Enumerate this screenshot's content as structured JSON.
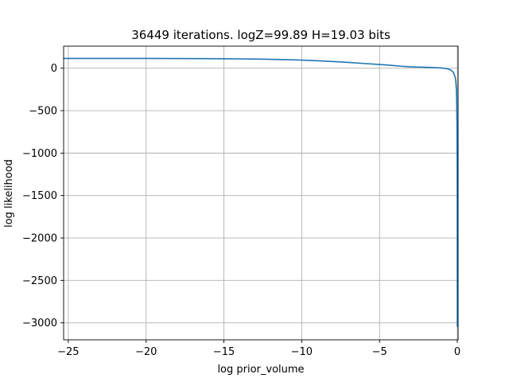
{
  "chart_data": {
    "type": "line",
    "title": "36449 iterations. logZ=99.89 H=19.03 bits",
    "xlabel": "log prior_volume",
    "ylabel": "log likelihood",
    "xlim": [
      -25.3,
      0.05
    ],
    "ylim": [
      -3200,
      260
    ],
    "grid": true,
    "x_ticks": [
      -25,
      -20,
      -15,
      -10,
      -5,
      0
    ],
    "x_tick_labels": [
      "−25",
      "−20",
      "−15",
      "−10",
      "−5",
      "0"
    ],
    "y_ticks": [
      0,
      -500,
      -1000,
      -1500,
      -2000,
      -2500,
      -3000
    ],
    "y_tick_labels": [
      "0",
      "−500",
      "−1000",
      "−1500",
      "−2000",
      "−2500",
      "−3000"
    ],
    "series": [
      {
        "color": "#1f77b4",
        "x": [
          -25.3,
          -22,
          -20,
          -18,
          -16,
          -15,
          -14,
          -13,
          -12,
          -11,
          -10,
          -9,
          -8,
          -7,
          -6,
          -5,
          -4.5,
          -4,
          -3.5,
          -3,
          -2.5,
          -2,
          -1.5,
          -1,
          -0.7,
          -0.5,
          -0.35,
          -0.25,
          -0.15,
          -0.1,
          -0.06,
          -0.04,
          -0.02,
          -0.01,
          -0.005,
          -0.002,
          0
        ],
        "y": [
          115,
          115,
          115,
          114,
          113,
          112,
          110,
          108,
          105,
          101,
          96,
          88,
          79,
          68,
          56,
          44,
          38,
          30,
          22,
          17,
          14,
          11,
          8,
          3,
          -5,
          -15,
          -30,
          -50,
          -100,
          -150,
          -250,
          -400,
          -700,
          -1100,
          -1700,
          -2400,
          -3040
        ]
      }
    ]
  }
}
